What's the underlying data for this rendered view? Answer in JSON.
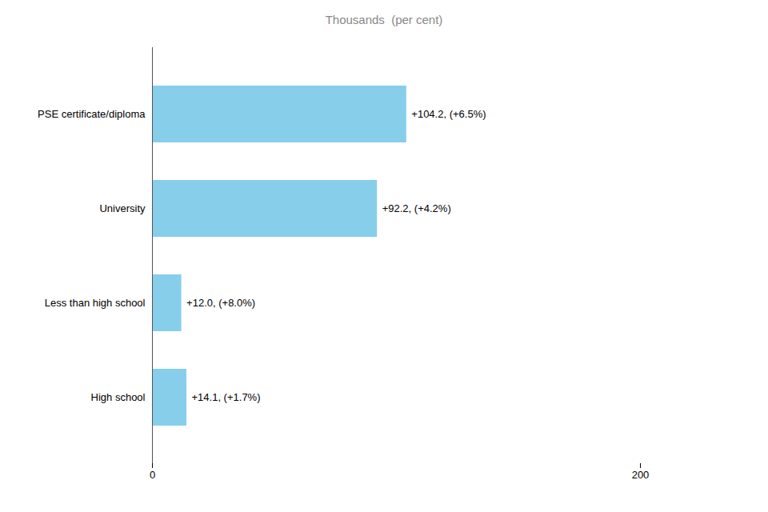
{
  "chart_data": {
    "type": "bar",
    "orientation": "horizontal",
    "title": "Thousands  (per cent)",
    "categories": [
      "PSE certificate/diploma",
      "University",
      "Less than high school",
      "High school"
    ],
    "values": [
      104.2,
      92.2,
      12.0,
      14.1
    ],
    "value_labels": [
      "+104.2, (+6.5%)",
      "+92.2, (+4.2%)",
      "+12.0, (+8.0%)",
      "+14.1, (+1.7%)"
    ],
    "data_labels": true,
    "color": "#87CEEB",
    "xlim": [
      0,
      200
    ],
    "xticks": [
      0,
      200
    ],
    "grid": false
  }
}
